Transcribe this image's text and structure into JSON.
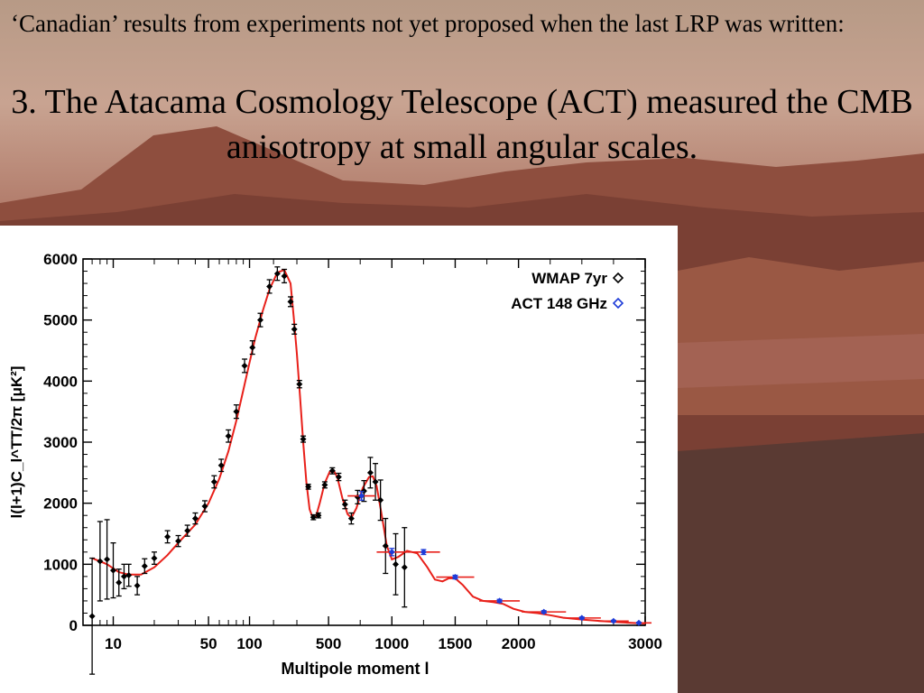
{
  "slide": {
    "intro": "‘Canadian’ results from experiments not yet proposed when the last LRP was written:",
    "heading": "3.  The Atacama Cosmology Telescope (ACT) measured the CMB anisotropy at small angular scales."
  },
  "chart_data": {
    "type": "scatter",
    "xlabel": "Multipole moment l",
    "ylabel": "l(l+1)C_l^TT/2π  [μK²]",
    "ylim": [
      0,
      6000
    ],
    "xlim": [
      6,
      3000
    ],
    "x_scale_note": "hybrid: log below 200, linear above",
    "x_tick_labels": [
      "10",
      "50",
      "100",
      "500",
      "1000",
      "1500",
      "2000",
      "3000"
    ],
    "y_tick_labels": [
      "0",
      "1000",
      "2000",
      "3000",
      "4000",
      "5000",
      "6000"
    ],
    "legend": [
      "WMAP 7yr",
      "ACT 148 GHz"
    ],
    "legend_position": "top-right",
    "series": [
      {
        "name": "WMAP 7yr",
        "color": "#000000",
        "marker": "diamond",
        "points": [
          {
            "x": 7,
            "y": 150,
            "err": 950
          },
          {
            "x": 8,
            "y": 1050,
            "err": 650
          },
          {
            "x": 9,
            "y": 1080,
            "err": 650
          },
          {
            "x": 10,
            "y": 900,
            "err": 450
          },
          {
            "x": 11,
            "y": 700,
            "err": 220
          },
          {
            "x": 12,
            "y": 800,
            "err": 200
          },
          {
            "x": 13,
            "y": 820,
            "err": 180
          },
          {
            "x": 15,
            "y": 650,
            "err": 150
          },
          {
            "x": 17,
            "y": 970,
            "err": 120
          },
          {
            "x": 20,
            "y": 1100,
            "err": 100
          },
          {
            "x": 25,
            "y": 1450,
            "err": 100
          },
          {
            "x": 30,
            "y": 1380,
            "err": 90
          },
          {
            "x": 35,
            "y": 1550,
            "err": 90
          },
          {
            "x": 40,
            "y": 1750,
            "err": 90
          },
          {
            "x": 47,
            "y": 1950,
            "err": 90
          },
          {
            "x": 55,
            "y": 2350,
            "err": 100
          },
          {
            "x": 62,
            "y": 2620,
            "err": 100
          },
          {
            "x": 70,
            "y": 3100,
            "err": 100
          },
          {
            "x": 80,
            "y": 3500,
            "err": 110
          },
          {
            "x": 92,
            "y": 4250,
            "err": 110
          },
          {
            "x": 105,
            "y": 4550,
            "err": 110
          },
          {
            "x": 120,
            "y": 5000,
            "err": 110
          },
          {
            "x": 140,
            "y": 5550,
            "err": 110
          },
          {
            "x": 160,
            "y": 5760,
            "err": 110
          },
          {
            "x": 180,
            "y": 5720,
            "err": 110
          },
          {
            "x": 200,
            "y": 5300,
            "err": 80
          },
          {
            "x": 230,
            "y": 4850,
            "err": 80
          },
          {
            "x": 270,
            "y": 3950,
            "err": 60
          },
          {
            "x": 300,
            "y": 3050,
            "err": 50
          },
          {
            "x": 340,
            "y": 2270,
            "err": 40
          },
          {
            "x": 380,
            "y": 1770,
            "err": 40
          },
          {
            "x": 420,
            "y": 1800,
            "err": 40
          },
          {
            "x": 470,
            "y": 2300,
            "err": 50
          },
          {
            "x": 530,
            "y": 2530,
            "err": 50
          },
          {
            "x": 580,
            "y": 2430,
            "err": 60
          },
          {
            "x": 630,
            "y": 1980,
            "err": 70
          },
          {
            "x": 680,
            "y": 1750,
            "err": 90
          },
          {
            "x": 730,
            "y": 2100,
            "err": 110
          },
          {
            "x": 780,
            "y": 2200,
            "err": 170
          },
          {
            "x": 830,
            "y": 2500,
            "err": 250
          },
          {
            "x": 870,
            "y": 2350,
            "err": 300
          },
          {
            "x": 910,
            "y": 2050,
            "err": 330
          },
          {
            "x": 950,
            "y": 1300,
            "err": 450
          },
          {
            "x": 1030,
            "y": 1000,
            "err": 500
          },
          {
            "x": 1100,
            "y": 950,
            "err": 650
          }
        ]
      },
      {
        "name": "ACT 148 GHz",
        "color": "#1d3bd8",
        "marker": "diamond",
        "points": [
          {
            "x": 760,
            "y": 2120,
            "err": 70,
            "xerr": 110
          },
          {
            "x": 1000,
            "y": 1200,
            "err": 60,
            "xerr": 120
          },
          {
            "x": 1250,
            "y": 1200,
            "err": 40,
            "xerr": 130
          },
          {
            "x": 1500,
            "y": 790,
            "err": 30,
            "xerr": 150
          },
          {
            "x": 1850,
            "y": 400,
            "err": 25,
            "xerr": 160
          },
          {
            "x": 2200,
            "y": 220,
            "err": 20,
            "xerr": 175
          },
          {
            "x": 2500,
            "y": 120,
            "err": 15,
            "xerr": 150
          },
          {
            "x": 2750,
            "y": 70,
            "err": 12,
            "xerr": 120
          },
          {
            "x": 2950,
            "y": 40,
            "err": 10,
            "xerr": 100
          }
        ]
      }
    ],
    "model_curve": {
      "color": "#e8201a",
      "points": [
        [
          7,
          1100
        ],
        [
          9,
          1000
        ],
        [
          11,
          870
        ],
        [
          13,
          830
        ],
        [
          16,
          830
        ],
        [
          20,
          950
        ],
        [
          25,
          1150
        ],
        [
          30,
          1350
        ],
        [
          40,
          1650
        ],
        [
          50,
          2000
        ],
        [
          60,
          2400
        ],
        [
          70,
          2850
        ],
        [
          80,
          3350
        ],
        [
          90,
          3850
        ],
        [
          100,
          4300
        ],
        [
          110,
          4700
        ],
        [
          125,
          5150
        ],
        [
          140,
          5500
        ],
        [
          160,
          5780
        ],
        [
          180,
          5820
        ],
        [
          200,
          5600
        ],
        [
          225,
          5050
        ],
        [
          250,
          4450
        ],
        [
          275,
          3750
        ],
        [
          300,
          3000
        ],
        [
          325,
          2350
        ],
        [
          350,
          1900
        ],
        [
          375,
          1760
        ],
        [
          400,
          1780
        ],
        [
          430,
          2000
        ],
        [
          470,
          2330
        ],
        [
          510,
          2520
        ],
        [
          540,
          2540
        ],
        [
          570,
          2420
        ],
        [
          610,
          2080
        ],
        [
          650,
          1820
        ],
        [
          680,
          1760
        ],
        [
          720,
          1920
        ],
        [
          770,
          2250
        ],
        [
          820,
          2430
        ],
        [
          850,
          2440
        ],
        [
          880,
          2280
        ],
        [
          920,
          1800
        ],
        [
          960,
          1300
        ],
        [
          1000,
          1080
        ],
        [
          1050,
          1120
        ],
        [
          1120,
          1220
        ],
        [
          1200,
          1180
        ],
        [
          1280,
          950
        ],
        [
          1340,
          750
        ],
        [
          1400,
          720
        ],
        [
          1450,
          770
        ],
        [
          1500,
          770
        ],
        [
          1560,
          660
        ],
        [
          1640,
          470
        ],
        [
          1720,
          400
        ],
        [
          1800,
          380
        ],
        [
          1880,
          350
        ],
        [
          1960,
          270
        ],
        [
          2050,
          220
        ],
        [
          2150,
          200
        ],
        [
          2250,
          165
        ],
        [
          2350,
          125
        ],
        [
          2500,
          95
        ],
        [
          2650,
          70
        ],
        [
          2800,
          50
        ],
        [
          3000,
          30
        ]
      ]
    }
  }
}
